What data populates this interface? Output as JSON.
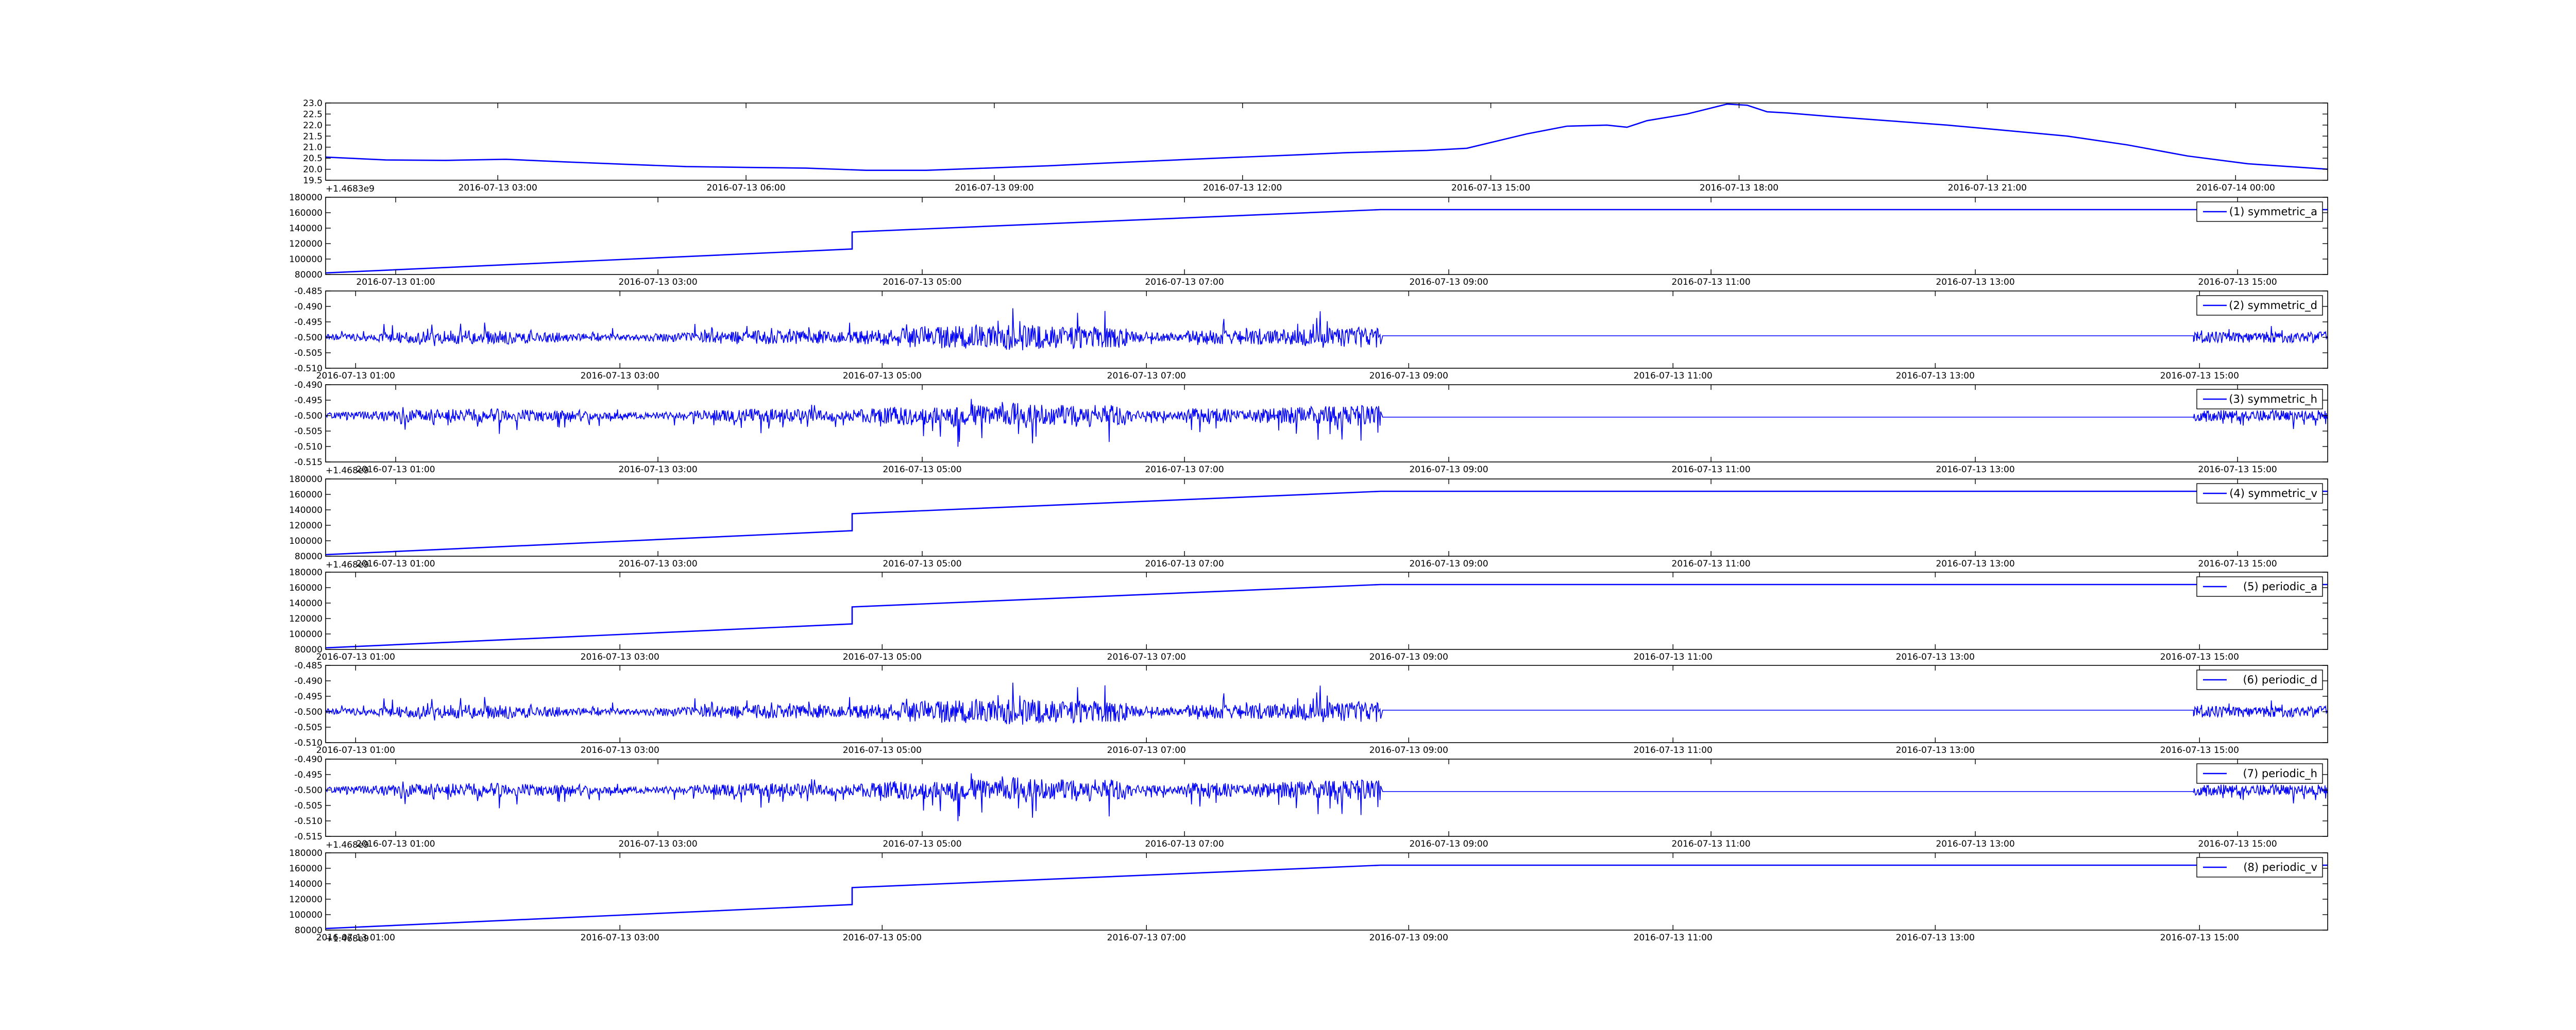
{
  "chart_data": [
    {
      "type": "line",
      "series_style": "smooth",
      "color": "#0000ff",
      "legend_label": "",
      "x_offset_label": "+1.4683e9",
      "ylim": [
        19.5,
        23.0
      ],
      "yticks": [
        "23.0",
        "22.5",
        "22.0",
        "21.5",
        "21.0",
        "20.5",
        "20.0",
        "19.5"
      ],
      "xticks": [
        "2016-07-13 03:00",
        "2016-07-13 06:00",
        "2016-07-13 09:00",
        "2016-07-13 12:00",
        "2016-07-13 15:00",
        "2016-07-13 18:00",
        "2016-07-13 21:00",
        "2016-07-14 00:00"
      ],
      "xtick_fracs": [
        0.086,
        0.21,
        0.334,
        0.458,
        0.582,
        0.706,
        0.83,
        0.954
      ],
      "x": [
        0.0,
        0.03,
        0.06,
        0.09,
        0.12,
        0.15,
        0.18,
        0.21,
        0.24,
        0.27,
        0.3,
        0.33,
        0.36,
        0.39,
        0.42,
        0.45,
        0.48,
        0.51,
        0.55,
        0.57,
        0.6,
        0.62,
        0.64,
        0.65,
        0.66,
        0.68,
        0.7,
        0.71,
        0.72,
        0.73,
        0.75,
        0.78,
        0.81,
        0.84,
        0.87,
        0.9,
        0.93,
        0.96,
        1.0
      ],
      "values": [
        20.55,
        20.42,
        20.4,
        20.45,
        20.33,
        20.22,
        20.12,
        20.08,
        20.05,
        19.95,
        19.95,
        20.05,
        20.15,
        20.28,
        20.4,
        20.52,
        20.63,
        20.75,
        20.85,
        20.95,
        21.6,
        21.95,
        22.0,
        21.9,
        22.2,
        22.5,
        22.95,
        22.9,
        22.6,
        22.55,
        22.4,
        22.2,
        22.0,
        21.75,
        21.5,
        21.1,
        20.6,
        20.25,
        20.0
      ]
    },
    {
      "type": "line",
      "series_style": "sawtooth",
      "color": "#0000ff",
      "legend_label": "(1) symmetric_a",
      "x_offset_label": "",
      "ylim": [
        80000,
        180000
      ],
      "yticks": [
        "180000",
        "160000",
        "140000",
        "120000",
        "100000",
        "80000"
      ],
      "xticks": [
        "2016-07-13 01:00",
        "2016-07-13 03:00",
        "2016-07-13 05:00",
        "2016-07-13 07:00",
        "2016-07-13 09:00",
        "2016-07-13 11:00",
        "2016-07-13 13:00",
        "2016-07-13 15:00"
      ],
      "xtick_fracs": [
        0.035,
        0.166,
        0.298,
        0.429,
        0.561,
        0.692,
        0.824,
        0.955
      ],
      "x": [
        0.0,
        0.263,
        0.263,
        0.527,
        1.0
      ],
      "values": [
        82000,
        113000,
        135000,
        164000,
        164000
      ]
    },
    {
      "type": "line",
      "series_style": "noise",
      "color": "#0000ff",
      "legend_label": "(2) symmetric_d",
      "x_offset_label": "",
      "ylim": [
        -0.51,
        -0.485
      ],
      "yticks": [
        "-0.485",
        "-0.490",
        "-0.495",
        "-0.500",
        "-0.505",
        "-0.510"
      ],
      "xticks": [
        "2016-07-13 01:00",
        "2016-07-13 03:00",
        "2016-07-13 05:00",
        "2016-07-13 07:00",
        "2016-07-13 09:00",
        "2016-07-13 11:00",
        "2016-07-13 13:00",
        "2016-07-13 15:00"
      ],
      "xtick_fracs": [
        0.015,
        0.147,
        0.278,
        0.41,
        0.541,
        0.673,
        0.804,
        0.936
      ],
      "baseline": -0.5,
      "flat_value": -0.4995,
      "noise_end": 0.527,
      "noise_restart": 0.933,
      "polarity": "up",
      "seed": 11
    },
    {
      "type": "line",
      "series_style": "noise",
      "color": "#0000ff",
      "legend_label": "(3) symmetric_h",
      "x_offset_label": "+1.468e9",
      "ylim": [
        -0.515,
        -0.49
      ],
      "yticks": [
        "-0.490",
        "-0.495",
        "-0.500",
        "-0.505",
        "-0.510",
        "-0.515"
      ],
      "xticks": [
        "2016-07-13 01:00",
        "2016-07-13 03:00",
        "2016-07-13 05:00",
        "2016-07-13 07:00",
        "2016-07-13 09:00",
        "2016-07-13 11:00",
        "2016-07-13 13:00",
        "2016-07-13 15:00"
      ],
      "xtick_fracs": [
        0.035,
        0.166,
        0.298,
        0.429,
        0.561,
        0.692,
        0.824,
        0.955
      ],
      "baseline": -0.5,
      "flat_value": -0.5005,
      "noise_end": 0.527,
      "noise_restart": 0.933,
      "polarity": "down",
      "seed": 23
    },
    {
      "type": "line",
      "series_style": "sawtooth",
      "color": "#0000ff",
      "legend_label": "(4) symmetric_v",
      "x_offset_label": "+1.468e9",
      "ylim": [
        80000,
        180000
      ],
      "yticks": [
        "180000",
        "160000",
        "140000",
        "120000",
        "100000",
        "80000"
      ],
      "xticks": [
        "2016-07-13 01:00",
        "2016-07-13 03:00",
        "2016-07-13 05:00",
        "2016-07-13 07:00",
        "2016-07-13 09:00",
        "2016-07-13 11:00",
        "2016-07-13 13:00",
        "2016-07-13 15:00"
      ],
      "xtick_fracs": [
        0.035,
        0.166,
        0.298,
        0.429,
        0.561,
        0.692,
        0.824,
        0.955
      ],
      "x": [
        0.0,
        0.263,
        0.263,
        0.527,
        1.0
      ],
      "values": [
        82000,
        113000,
        135000,
        164000,
        164000
      ]
    },
    {
      "type": "line",
      "series_style": "sawtooth",
      "color": "#0000ff",
      "legend_label": "(5) periodic_a",
      "x_offset_label": "",
      "ylim": [
        80000,
        180000
      ],
      "yticks": [
        "180000",
        "160000",
        "140000",
        "120000",
        "100000",
        "80000"
      ],
      "xticks": [
        "2016-07-13 01:00",
        "2016-07-13 03:00",
        "2016-07-13 05:00",
        "2016-07-13 07:00",
        "2016-07-13 09:00",
        "2016-07-13 11:00",
        "2016-07-13 13:00",
        "2016-07-13 15:00"
      ],
      "xtick_fracs": [
        0.015,
        0.147,
        0.278,
        0.41,
        0.541,
        0.673,
        0.804,
        0.936
      ],
      "x": [
        0.0,
        0.263,
        0.263,
        0.527,
        1.0
      ],
      "values": [
        82000,
        113000,
        135000,
        164000,
        164000
      ]
    },
    {
      "type": "line",
      "series_style": "noise",
      "color": "#0000ff",
      "legend_label": "(6) periodic_d",
      "x_offset_label": "",
      "ylim": [
        -0.51,
        -0.485
      ],
      "yticks": [
        "-0.485",
        "-0.490",
        "-0.495",
        "-0.500",
        "-0.505",
        "-0.510"
      ],
      "xticks": [
        "2016-07-13 01:00",
        "2016-07-13 03:00",
        "2016-07-13 05:00",
        "2016-07-13 07:00",
        "2016-07-13 09:00",
        "2016-07-13 11:00",
        "2016-07-13 13:00",
        "2016-07-13 15:00"
      ],
      "xtick_fracs": [
        0.015,
        0.147,
        0.278,
        0.41,
        0.541,
        0.673,
        0.804,
        0.936
      ],
      "baseline": -0.5,
      "flat_value": -0.4995,
      "noise_end": 0.527,
      "noise_restart": 0.933,
      "polarity": "up",
      "seed": 11
    },
    {
      "type": "line",
      "series_style": "noise",
      "color": "#0000ff",
      "legend_label": "(7) periodic_h",
      "x_offset_label": "+1.468e9",
      "ylim": [
        -0.515,
        -0.49
      ],
      "yticks": [
        "-0.490",
        "-0.495",
        "-0.500",
        "-0.505",
        "-0.510",
        "-0.515"
      ],
      "xticks": [
        "2016-07-13 01:00",
        "2016-07-13 03:00",
        "2016-07-13 05:00",
        "2016-07-13 07:00",
        "2016-07-13 09:00",
        "2016-07-13 11:00",
        "2016-07-13 13:00",
        "2016-07-13 15:00"
      ],
      "xtick_fracs": [
        0.035,
        0.166,
        0.298,
        0.429,
        0.561,
        0.692,
        0.824,
        0.955
      ],
      "baseline": -0.5,
      "flat_value": -0.5005,
      "noise_end": 0.527,
      "noise_restart": 0.933,
      "polarity": "down",
      "seed": 23
    },
    {
      "type": "line",
      "series_style": "sawtooth",
      "color": "#0000ff",
      "legend_label": "(8) periodic_v",
      "x_offset_label": "+1.468e9",
      "ylim": [
        80000,
        180000
      ],
      "yticks": [
        "180000",
        "160000",
        "140000",
        "120000",
        "100000",
        "80000"
      ],
      "xticks": [
        "2016-07-13 01:00",
        "2016-07-13 03:00",
        "2016-07-13 05:00",
        "2016-07-13 07:00",
        "2016-07-13 09:00",
        "2016-07-13 11:00",
        "2016-07-13 13:00",
        "2016-07-13 15:00"
      ],
      "xtick_fracs": [
        0.015,
        0.147,
        0.278,
        0.41,
        0.541,
        0.673,
        0.804,
        0.936
      ],
      "x": [
        0.0,
        0.263,
        0.263,
        0.527,
        1.0
      ],
      "values": [
        82000,
        113000,
        135000,
        164000,
        164000
      ]
    }
  ]
}
